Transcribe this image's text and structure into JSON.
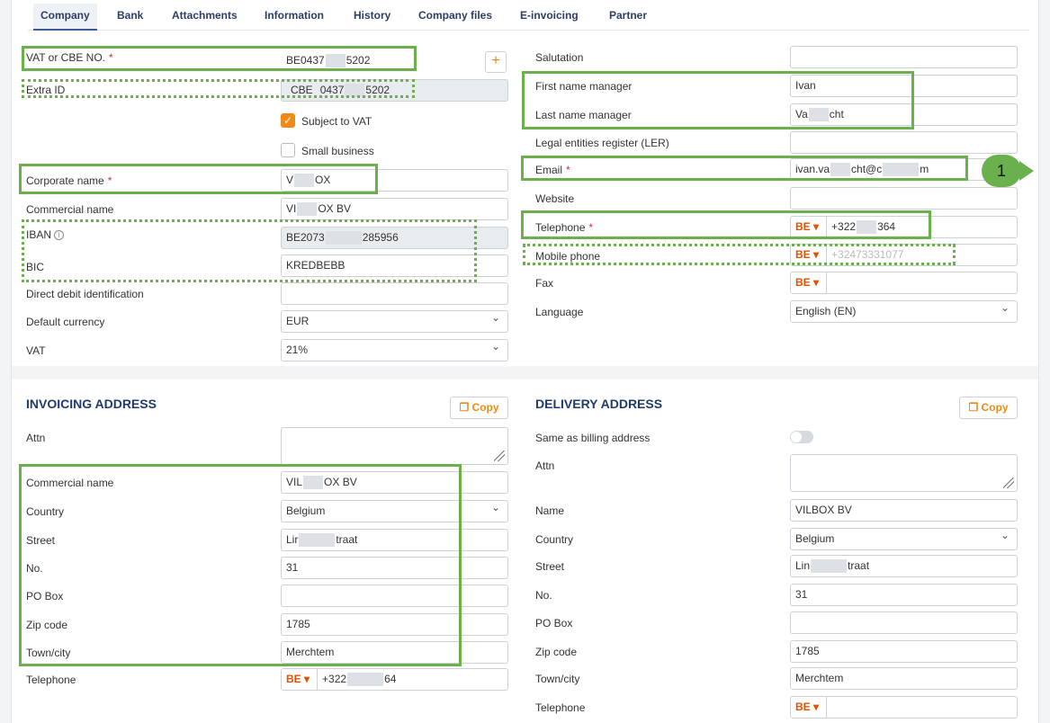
{
  "tabs": [
    "Company",
    "Bank",
    "Attachments",
    "Information",
    "History",
    "Company files",
    "E-invoicing",
    "Partner"
  ],
  "company": {
    "vat_label": "VAT or CBE NO.",
    "vat_val_a": "BE0437",
    "vat_val_b": "5202",
    "extra_label": "Extra ID",
    "extra_prefix": "CBE",
    "extra_a": "0437",
    "extra_b": "5202",
    "plus": "+",
    "subject_vat": "Subject to VAT",
    "small_business": "Small business",
    "corp_label": "Corporate name",
    "corp_a": "V",
    "corp_b": "OX",
    "comm_label": "Commercial name",
    "comm_a": "VI",
    "comm_b": "OX BV",
    "iban_label": "IBAN",
    "iban_a": "BE2073",
    "iban_b": "285956",
    "bic_label": "BIC",
    "bic_val": "KREDBEBB",
    "ddi_label": "Direct debit identification",
    "cur_label": "Default currency",
    "cur_val": "EUR",
    "vat2_label": "VAT",
    "vat2_val": "21%"
  },
  "contact": {
    "sal_label": "Salutation",
    "first_label": "First name manager",
    "first_val": "Ivan",
    "last_label": "Last name manager",
    "last_a": "Va",
    "last_b": "cht",
    "ler_label": "Legal entities register (LER)",
    "email_label": "Email",
    "email_a": "ivan.va",
    "email_b": "cht@c",
    "email_c": "m",
    "web_label": "Website",
    "tel_label": "Telephone",
    "tel_prefix": "BE",
    "tel_a": "+322",
    "tel_b": "364",
    "mob_label": "Mobile phone",
    "mob_prefix": "BE",
    "mob_val": "+32473331077",
    "fax_label": "Fax",
    "fax_prefix": "BE",
    "lang_label": "Language",
    "lang_val": "English (EN)",
    "badge": "1"
  },
  "invoicing": {
    "title": "INVOICING ADDRESS",
    "copy": "Copy",
    "attn": "Attn",
    "comm_label": "Commercial name",
    "comm_a": "VIL",
    "comm_b": "OX BV",
    "country_label": "Country",
    "country_val": "Belgium",
    "street_label": "Street",
    "street_a": "Lir",
    "street_b": "traat",
    "no_label": "No.",
    "no_val": "31",
    "po_label": "PO Box",
    "zip_label": "Zip code",
    "zip_val": "1785",
    "town_label": "Town/city",
    "town_val": "Merchtem",
    "tel_label": "Telephone",
    "tel_prefix": "BE",
    "tel_a": "+322",
    "tel_b": "64"
  },
  "delivery": {
    "title": "DELIVERY ADDRESS",
    "copy": "Copy",
    "same_label": "Same as billing address",
    "attn": "Attn",
    "name_label": "Name",
    "name_val": "VILBOX BV",
    "country_label": "Country",
    "country_val": "Belgium",
    "street_label": "Street",
    "street_a": "Lin",
    "street_b": "traat",
    "no_label": "No.",
    "no_val": "31",
    "po_label": "PO Box",
    "zip_label": "Zip code",
    "zip_val": "1785",
    "town_label": "Town/city",
    "town_val": "Merchtem",
    "tel_label": "Telephone",
    "tel_prefix": "BE"
  },
  "colors": {
    "highlight": "#6ab04c",
    "accent": "#ef8a17",
    "heading": "#1f3b6b"
  }
}
